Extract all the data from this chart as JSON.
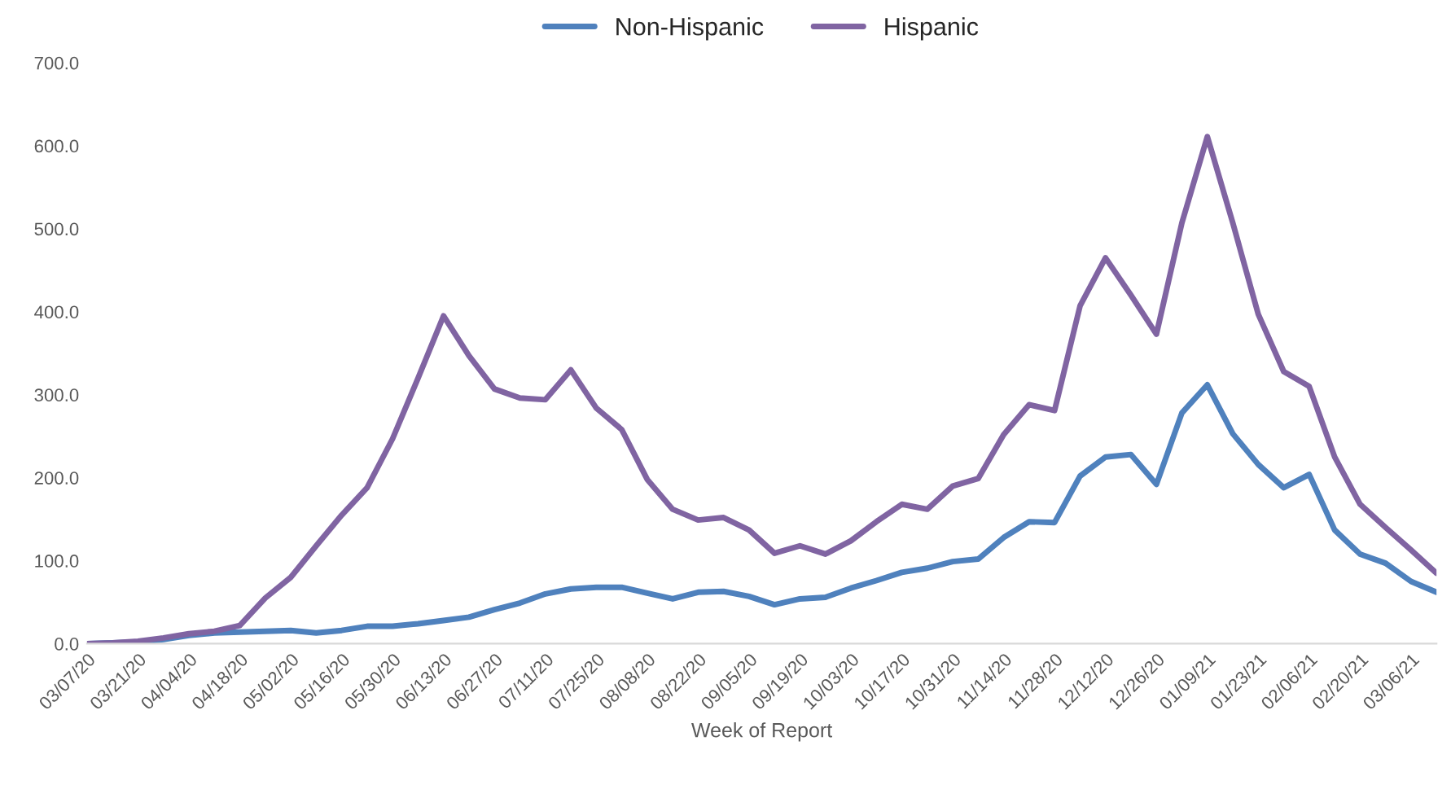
{
  "chart_data": {
    "type": "line",
    "xlabel": "Week of Report",
    "categories": [
      "03/07/20",
      null,
      "03/21/20",
      null,
      "04/04/20",
      null,
      "04/18/20",
      null,
      "05/02/20",
      null,
      "05/16/20",
      null,
      "05/30/20",
      null,
      "06/13/20",
      null,
      "06/27/20",
      null,
      "07/11/20",
      null,
      "07/25/20",
      null,
      "08/08/20",
      null,
      "08/22/20",
      null,
      "09/05/20",
      null,
      "09/19/20",
      null,
      "10/03/20",
      null,
      "10/17/20",
      null,
      "10/31/20",
      null,
      "11/14/20",
      null,
      "11/28/20",
      null,
      "12/12/20",
      null,
      "12/26/20",
      null,
      "01/09/21",
      null,
      "01/23/21",
      null,
      "02/06/21",
      null,
      "02/20/21",
      null,
      "03/06/21",
      null
    ],
    "series": [
      {
        "name": "Non-Hispanic",
        "color": "#4f81bd",
        "values": [
          0,
          1,
          2,
          5,
          10,
          13,
          14,
          15,
          16,
          13,
          16,
          21,
          21,
          24,
          28,
          32,
          41,
          49,
          60,
          66,
          68,
          68,
          61,
          54,
          62,
          63,
          57,
          47,
          54,
          56,
          67,
          76,
          86,
          91,
          99,
          102,
          128,
          147,
          146,
          202,
          225,
          228,
          192,
          278,
          312,
          253,
          216,
          188,
          204,
          137,
          108,
          97,
          75,
          62
        ]
      },
      {
        "name": "Hispanic",
        "color": "#8064a2",
        "values": [
          0,
          1,
          3,
          7,
          12,
          15,
          22,
          55,
          80,
          118,
          155,
          188,
          247,
          320,
          395,
          347,
          307,
          296,
          294,
          330,
          284,
          258,
          198,
          162,
          149,
          152,
          137,
          109,
          118,
          108,
          124,
          147,
          168,
          162,
          190,
          199,
          252,
          288,
          281,
          407,
          465,
          420,
          373,
          507,
          611,
          507,
          397,
          328,
          310,
          225,
          168,
          140,
          113,
          85
        ]
      }
    ],
    "ylim": [
      0,
      700
    ],
    "yticks": [
      {
        "value": 0,
        "label": "0.0"
      },
      {
        "value": 100,
        "label": "100.0"
      },
      {
        "value": 200,
        "label": "200.0"
      },
      {
        "value": 300,
        "label": "300.0"
      },
      {
        "value": 400,
        "label": "400.0"
      },
      {
        "value": 500,
        "label": "500.0"
      },
      {
        "value": 600,
        "label": "600.0"
      },
      {
        "value": 700,
        "label": "700.0"
      }
    ],
    "grid": false,
    "legend": "top",
    "line_style": "solid",
    "marker": "none"
  }
}
